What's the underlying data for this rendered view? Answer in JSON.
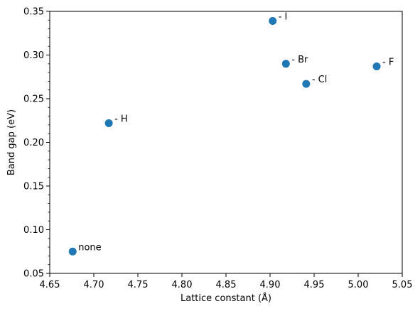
{
  "chart_data": {
    "type": "scatter",
    "title": "",
    "xlabel": "Lattice constant (Å)",
    "ylabel": "Band gap (eV)",
    "xlim": [
      4.65,
      5.05
    ],
    "ylim": [
      0.05,
      0.35
    ],
    "xticks": [
      "4.65",
      "4.70",
      "4.75",
      "4.80",
      "4.85",
      "4.90",
      "4.95",
      "5.00",
      "5.05"
    ],
    "yticks": [
      "0.05",
      "0.10",
      "0.15",
      "0.20",
      "0.25",
      "0.30",
      "0.35"
    ],
    "grid": false,
    "marker_color": "#1f77b4",
    "points": [
      {
        "label": "none",
        "x": 4.676,
        "y": 0.075
      },
      {
        "label": "- H",
        "x": 4.717,
        "y": 0.222
      },
      {
        "label": "- I",
        "x": 4.903,
        "y": 0.339
      },
      {
        "label": "- Br",
        "x": 4.918,
        "y": 0.29
      },
      {
        "label": "- Cl",
        "x": 4.941,
        "y": 0.267
      },
      {
        "label": "- F",
        "x": 5.021,
        "y": 0.287
      }
    ]
  }
}
